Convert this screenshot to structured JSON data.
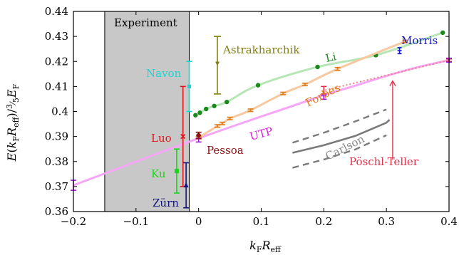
{
  "chart_data": {
    "type": "scatter",
    "xlabel": "k_F R_eff",
    "ylabel": "E(k_F R_eff) / (3/5) E_F",
    "xlim": [
      -0.2,
      0.4
    ],
    "ylim": [
      0.36,
      0.44
    ],
    "x_ticks": [
      -0.2,
      -0.1,
      0,
      0.1,
      0.2,
      0.3,
      0.4
    ],
    "y_ticks": [
      0.36,
      0.37,
      0.38,
      0.39,
      0.4,
      0.41,
      0.42,
      0.43,
      0.44
    ],
    "x_tick_labels": [
      "−0.2",
      "−0.1",
      "0",
      "0.1",
      "0.2",
      "0.3",
      "0.4"
    ],
    "y_tick_labels": [
      "0.36",
      "0.37",
      "0.38",
      "0.39",
      "0.4",
      "0.41",
      "0.42",
      "0.43",
      "0.44"
    ],
    "experiment_region": {
      "x": [
        -0.15,
        -0.015
      ],
      "label": "Experiment",
      "color": "#c8c8c8"
    },
    "series": [
      {
        "name": "Li",
        "color": "#1b8a1b",
        "line_color": "#b6e6b6",
        "kind": "points_smooth",
        "points": [
          [
            -0.005,
            0.3985
          ],
          [
            0.002,
            0.3995
          ],
          [
            0.012,
            0.401
          ],
          [
            0.025,
            0.4022
          ],
          [
            0.045,
            0.4038
          ],
          [
            0.095,
            0.4105
          ],
          [
            0.19,
            0.4178
          ],
          [
            0.283,
            0.4225
          ],
          [
            0.39,
            0.4315
          ]
        ]
      },
      {
        "name": "Forbes",
        "color": "#e07b16",
        "line_color": "#f8c8a0",
        "kind": "errorbars_line",
        "points": [
          [
            0.0,
            0.3895,
            0.0005
          ],
          [
            0.03,
            0.3942,
            0.0005
          ],
          [
            0.038,
            0.3952,
            0.0005
          ],
          [
            0.05,
            0.3972,
            0.0005
          ],
          [
            0.083,
            0.4005,
            0.0005
          ],
          [
            0.135,
            0.4072,
            0.0005
          ],
          [
            0.17,
            0.4108,
            0.0005
          ],
          [
            0.222,
            0.417,
            0.0006
          ],
          [
            0.33,
            0.428,
            0.0005
          ]
        ]
      },
      {
        "name": "UTP",
        "color": "#e83ee8",
        "line_color": "#f6a6f6",
        "kind": "line",
        "points": [
          [
            -0.2,
            0.3705
          ],
          [
            -0.15,
            0.3752
          ],
          [
            -0.1,
            0.3799
          ],
          [
            -0.05,
            0.3847
          ],
          [
            0.0,
            0.3893
          ],
          [
            0.05,
            0.3937
          ],
          [
            0.1,
            0.398
          ],
          [
            0.15,
            0.4022
          ],
          [
            0.2,
            0.4065
          ],
          [
            0.25,
            0.4103
          ],
          [
            0.3,
            0.4142
          ],
          [
            0.35,
            0.4177
          ],
          [
            0.4,
            0.4205
          ]
        ]
      },
      {
        "name": "UTP error points",
        "color": "#9b1bd8",
        "kind": "errorbars",
        "points": [
          [
            -0.2,
            0.3705,
            0.002
          ],
          [
            0.0,
            0.3885,
            0.0007
          ],
          [
            0.2,
            0.4057,
            0.0008
          ],
          [
            0.4,
            0.4205,
            0.0008
          ]
        ]
      },
      {
        "name": "Pöschl-Teller",
        "color": "#e0304a",
        "kind": "errorbars_dotted",
        "points": [
          [
            0.2,
            0.4085,
            0.0015
          ],
          [
            0.4,
            0.4205,
            0.0005
          ]
        ]
      },
      {
        "name": "Morris",
        "color": "#1515c8",
        "kind": "point",
        "points": [
          [
            0.321,
            0.4243,
            0.0012
          ]
        ]
      },
      {
        "name": "Pessoa",
        "color": "#8b1010",
        "kind": "errorbars",
        "points": [
          [
            0.0,
            0.3905,
            0.0012
          ]
        ]
      },
      {
        "name": "Carlson",
        "color": "#7a7a7a",
        "kind": "bands",
        "center": [
          [
            0.15,
            0.3835
          ],
          [
            0.2,
            0.3865
          ],
          [
            0.25,
            0.3902
          ],
          [
            0.3,
            0.3955
          ],
          [
            0.305,
            0.3967
          ]
        ],
        "upper": [
          [
            0.15,
            0.3875
          ],
          [
            0.2,
            0.3915
          ],
          [
            0.25,
            0.396
          ],
          [
            0.3,
            0.4008
          ]
        ],
        "lower": [
          [
            0.15,
            0.3775
          ],
          [
            0.2,
            0.3808
          ],
          [
            0.25,
            0.3848
          ],
          [
            0.3,
            0.3905
          ]
        ]
      },
      {
        "name": "Astrakharchik",
        "color": "#808010",
        "kind": "errorbars",
        "points": [
          [
            0.03,
            0.4185,
            0.0115
          ]
        ]
      },
      {
        "name": "Navon",
        "color": "#18d4d4",
        "kind": "errorbars",
        "points": [
          [
            -0.015,
            0.41,
            0.01
          ]
        ]
      },
      {
        "name": "Luo",
        "color": "#e01818",
        "kind": "errorbars",
        "points": [
          [
            -0.025,
            0.39,
            0.02
          ]
        ]
      },
      {
        "name": "Ku",
        "color": "#18d418",
        "kind": "errorbars",
        "points": [
          [
            -0.035,
            0.3762,
            0.0088
          ]
        ]
      },
      {
        "name": "Zürn",
        "color": "#141480",
        "kind": "errorbars",
        "points": [
          [
            -0.02,
            0.3705,
            0.009
          ]
        ]
      }
    ],
    "annotations": [
      {
        "name": "Experiment",
        "text": "Experiment",
        "color": "#000000"
      },
      {
        "name": "Astrakharchik",
        "text": "Astrakharchik",
        "color": "#808010"
      },
      {
        "name": "Li",
        "text": "Li",
        "color": "#1b8a1b"
      },
      {
        "name": "Morris",
        "text": "Morris",
        "color": "#1515c8"
      },
      {
        "name": "Navon",
        "text": "Navon",
        "color": "#18d4d4"
      },
      {
        "name": "Forbes",
        "text": "Forbes",
        "color": "#e07b16"
      },
      {
        "name": "UTP",
        "text": "UTP",
        "color": "#d820d8"
      },
      {
        "name": "Luo",
        "text": "Luo",
        "color": "#e01818"
      },
      {
        "name": "Pessoa",
        "text": "Pessoa",
        "color": "#8b1010"
      },
      {
        "name": "Carlson",
        "text": "Carlson",
        "color": "#8a8a8a"
      },
      {
        "name": "Ku",
        "text": "Ku",
        "color": "#18d418"
      },
      {
        "name": "Pöschl-Teller",
        "text": "Pöschl-Teller",
        "color": "#e0304a"
      },
      {
        "name": "Zürn",
        "text": "Zürn",
        "color": "#141480"
      }
    ]
  }
}
